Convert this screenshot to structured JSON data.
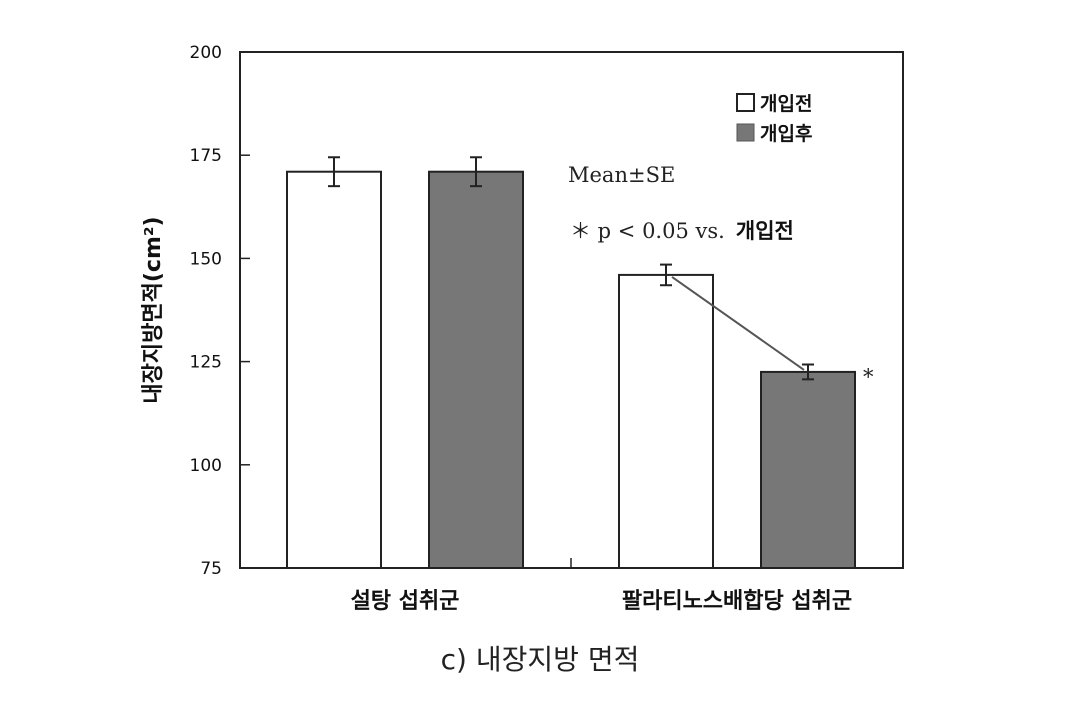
{
  "chart_data": {
    "type": "bar",
    "categories": [
      "설탕 섭취군",
      "팔라티노스배합당 섭취군"
    ],
    "series": [
      {
        "name": "개입전",
        "values": [
          171,
          146
        ],
        "errors": [
          3.5,
          2.5
        ],
        "color": "#ffffff"
      },
      {
        "name": "개입후",
        "values": [
          171,
          122.5
        ],
        "errors": [
          3.5,
          1.8
        ],
        "color": "#777777"
      }
    ],
    "ylabel": "내장지방면적(cm²)",
    "ylim": [
      75,
      200
    ],
    "yticks": [
      75,
      100,
      125,
      150,
      175,
      200
    ],
    "legend_position": "top-right",
    "annotations": {
      "stat_label": "Mean±SE",
      "p_prefix": "＊ p < 0.05 vs.",
      "p_ref": "개입전",
      "significance_mark": "*"
    }
  },
  "caption": "c) 내장지방 면적"
}
